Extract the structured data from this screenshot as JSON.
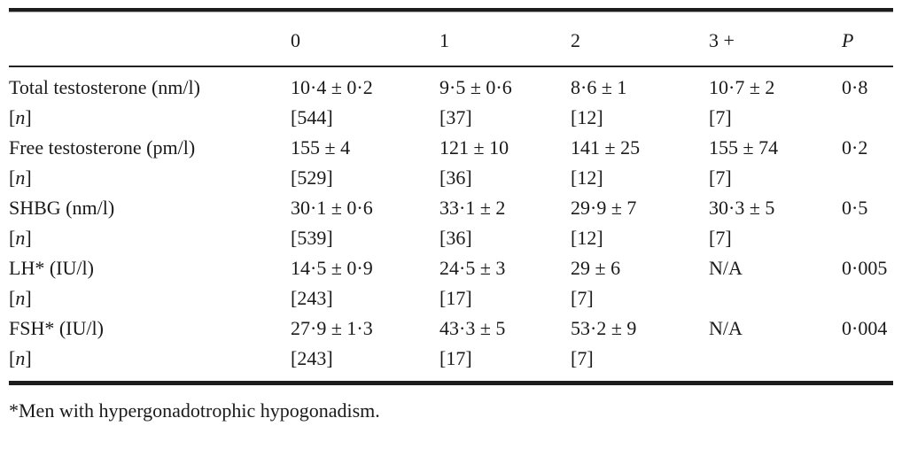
{
  "table": {
    "columns": [
      {
        "label": "",
        "italic": false
      },
      {
        "label": "0",
        "italic": false
      },
      {
        "label": "1",
        "italic": false
      },
      {
        "label": "2",
        "italic": false
      },
      {
        "label": "3 +",
        "italic": false
      },
      {
        "label": "P",
        "italic": true
      }
    ],
    "rows": [
      {
        "label": "Total testosterone (nm/l)",
        "n_row": false,
        "cells": [
          "10·4 ± 0·2",
          "9·5 ± 0·6",
          "8·6 ± 1",
          "10·7 ± 2",
          "0·8"
        ]
      },
      {
        "label": "[n]",
        "n_row": true,
        "cells": [
          "[544]",
          "[37]",
          "[12]",
          "[7]",
          ""
        ]
      },
      {
        "label": "Free testosterone (pm/l)",
        "n_row": false,
        "cells": [
          "155 ± 4",
          "121 ± 10",
          "141 ± 25",
          "155 ± 74",
          "0·2"
        ]
      },
      {
        "label": "[n]",
        "n_row": true,
        "cells": [
          "[529]",
          "[36]",
          "[12]",
          "[7]",
          ""
        ]
      },
      {
        "label": "SHBG (nm/l)",
        "n_row": false,
        "cells": [
          "30·1 ± 0·6",
          "33·1 ± 2",
          "29·9 ± 7",
          "30·3 ± 5",
          "0·5"
        ]
      },
      {
        "label": "[n]",
        "n_row": true,
        "cells": [
          "[539]",
          "[36]",
          "[12]",
          "[7]",
          ""
        ]
      },
      {
        "label": "LH* (IU/l)",
        "n_row": false,
        "cells": [
          "14·5 ± 0·9",
          "24·5 ± 3",
          "29 ± 6",
          "N/A",
          "0·005"
        ]
      },
      {
        "label": "[n]",
        "n_row": true,
        "cells": [
          "[243]",
          "[17]",
          "[7]",
          "",
          ""
        ]
      },
      {
        "label": "FSH* (IU/l)",
        "n_row": false,
        "cells": [
          "27·9 ± 1·3",
          "43·3 ± 5",
          "53·2 ± 9",
          "N/A",
          "0·004"
        ]
      },
      {
        "label": "[n]",
        "n_row": true,
        "cells": [
          "[243]",
          "[17]",
          "[7]",
          "",
          ""
        ]
      }
    ]
  },
  "footnote": "*Men with hypergonadotrophic hypogonadism.",
  "colors": {
    "text": "#1a1a1a",
    "rule": "#1d1d1d",
    "background": "#ffffff"
  }
}
